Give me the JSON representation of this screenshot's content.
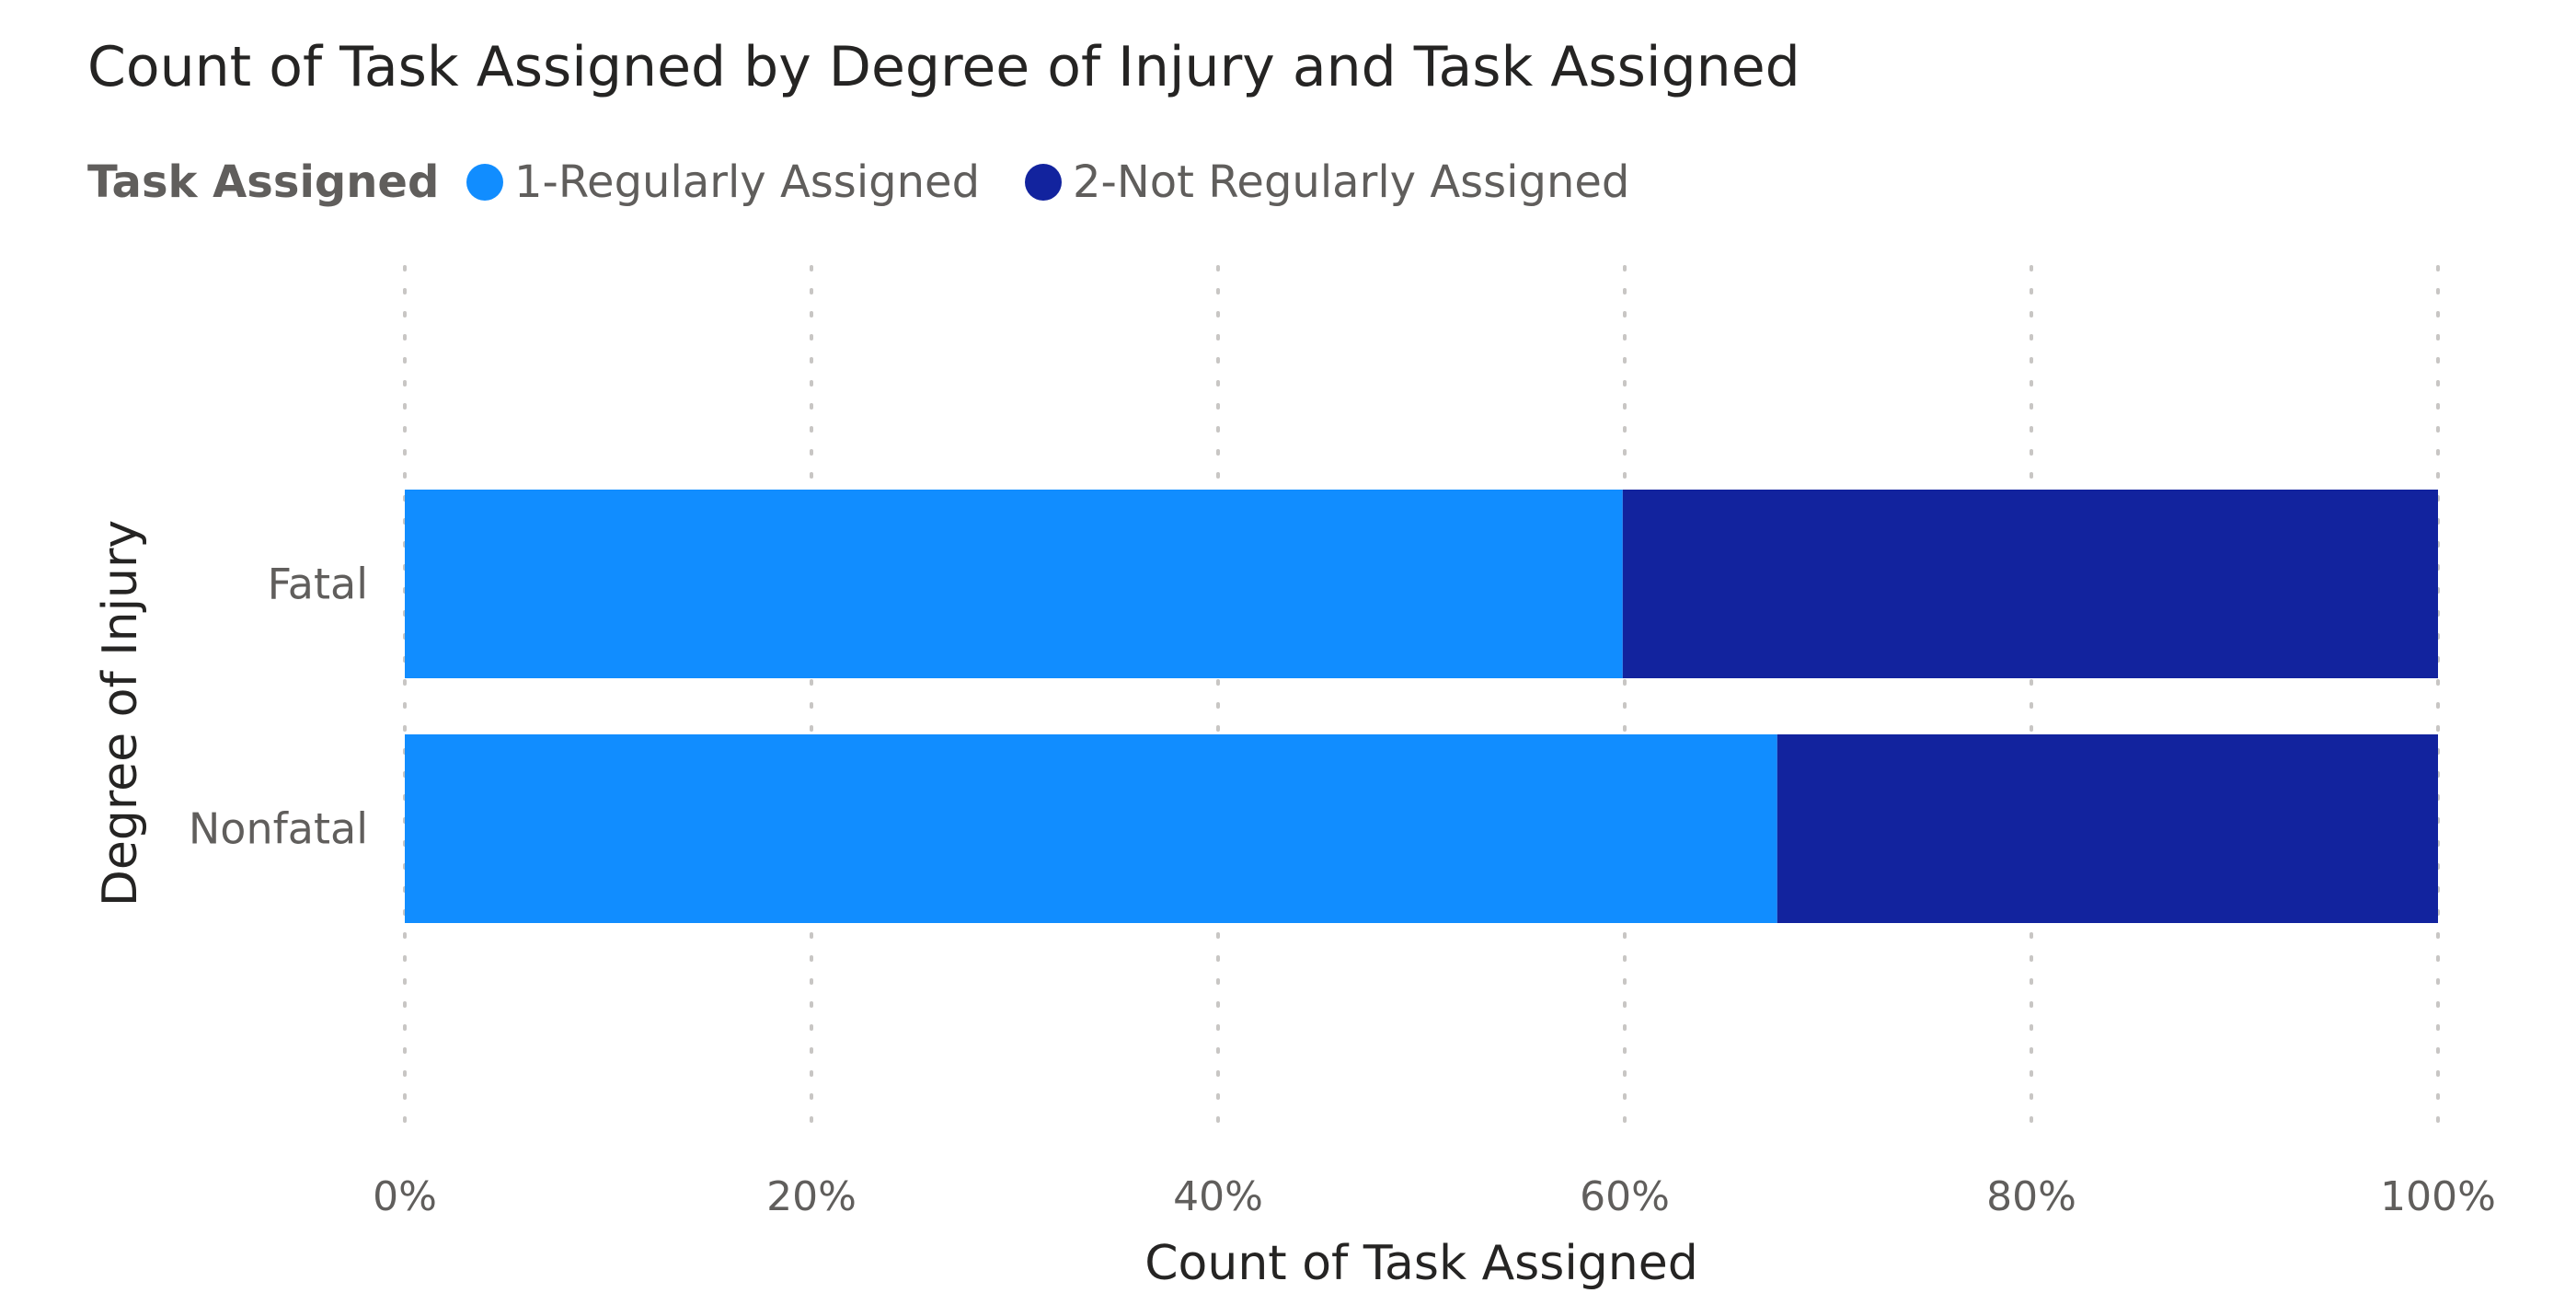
{
  "chart_data": {
    "type": "bar",
    "orientation": "horizontal",
    "stacked": "100%",
    "title": "Count of Task Assigned by Degree of Injury and Task Assigned",
    "legend": {
      "title": "Task Assigned",
      "position": "top-left"
    },
    "categories": [
      "Fatal",
      "Nonfatal"
    ],
    "series": [
      {
        "name": "1-Regularly Assigned",
        "color": "#118dff",
        "values": [
          0.599,
          0.675
        ]
      },
      {
        "name": "2-Not Regularly Assigned",
        "color": "#12239e",
        "values": [
          0.401,
          0.325
        ]
      }
    ],
    "xlabel": "Count of Task Assigned",
    "ylabel": "Degree of Injury",
    "xlim": [
      0,
      1
    ],
    "x_ticks": [
      "0%",
      "20%",
      "40%",
      "60%",
      "80%",
      "100%"
    ],
    "grid": "vertical dotted"
  }
}
